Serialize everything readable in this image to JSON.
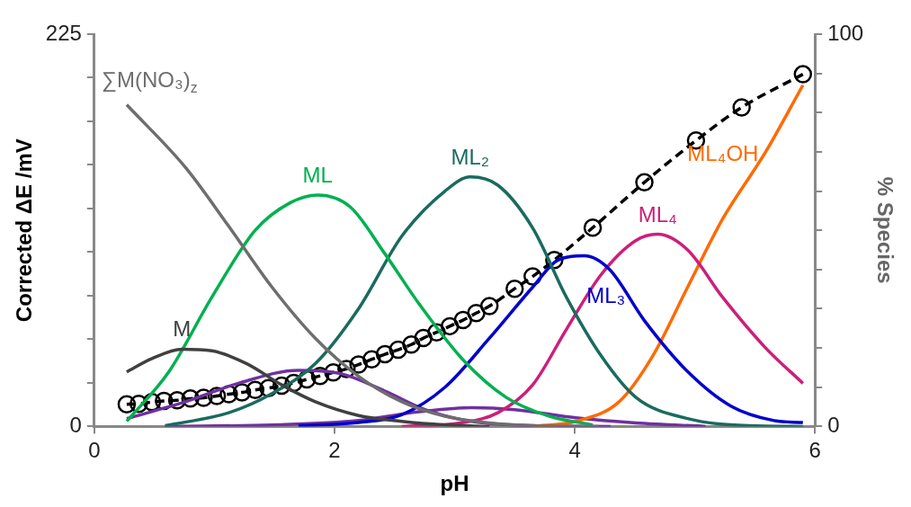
{
  "chart_data": {
    "type": "line",
    "xlabel": "pH",
    "ylabel": "Corrected ΔE /mV",
    "y2label": "% Species",
    "xlim": [
      0,
      6
    ],
    "xticks": [
      0,
      2,
      4,
      6
    ],
    "ylim": [
      0,
      225
    ],
    "yticks": [
      0,
      {
        "value": 25,
        "label": null
      },
      {
        "value": 50,
        "label": null
      },
      {
        "value": 75,
        "label": null
      },
      {
        "value": 100,
        "label": null
      },
      {
        "value": 125,
        "label": null
      },
      {
        "value": 150,
        "label": null
      },
      {
        "value": 175,
        "label": null
      },
      {
        "value": 200,
        "label": null
      },
      225
    ],
    "y2lim": [
      0,
      100
    ],
    "y2ticks": [
      0,
      {
        "value": 10,
        "label": null
      },
      {
        "value": 20,
        "label": null
      },
      {
        "value": 30,
        "label": null
      },
      {
        "value": 40,
        "label": null
      },
      {
        "value": 50,
        "label": null
      },
      {
        "value": 60,
        "label": null
      },
      {
        "value": 70,
        "label": null
      },
      {
        "value": 80,
        "label": null
      },
      {
        "value": 90,
        "label": null
      },
      100
    ],
    "grid": false,
    "legend": false,
    "series": [
      {
        "name": "∑M(NO₃)$_{z}$",
        "color": "#6e6e6e",
        "axis": "y2",
        "x": [
          0.27,
          0.76,
          1.12,
          1.48,
          1.84,
          2.2,
          2.56,
          2.92,
          3.29,
          3.65,
          4.2
        ],
        "values": [
          82,
          66,
          51,
          35.5,
          22.5,
          12.8,
          6.3,
          2.6,
          0.9,
          0.2,
          0
        ]
      },
      {
        "name": "M",
        "color": "#404040",
        "axis": "y2",
        "x": [
          0.27,
          0.48,
          0.73,
          0.98,
          1.27,
          1.56,
          1.84,
          2.2,
          2.56,
          2.92,
          3.29
        ],
        "values": [
          13.9,
          17.3,
          19.7,
          19.3,
          16,
          10.6,
          6.3,
          2.8,
          1.3,
          0.4,
          0
        ]
      },
      {
        "name": "ML",
        "color": "#00b050",
        "axis": "y2",
        "x": [
          0.27,
          0.62,
          0.98,
          1.34,
          1.63,
          1.86,
          2.13,
          2.42,
          2.71,
          3.07,
          3.43,
          3.79,
          4.15
        ],
        "values": [
          1.3,
          13.9,
          33,
          50,
          57,
          59,
          56,
          44,
          31,
          17,
          7.4,
          2.6,
          0.4
        ]
      },
      {
        "name": "ML₂",
        "color": "#1a6b5e",
        "axis": "y2",
        "x": [
          0.59,
          1.12,
          1.48,
          1.84,
          2.2,
          2.56,
          2.92,
          3.13,
          3.36,
          3.65,
          3.93,
          4.22,
          4.51,
          4.94,
          5.45,
          5.9
        ],
        "values": [
          0.2,
          3.5,
          8.4,
          16,
          30,
          48.5,
          60,
          63.6,
          61.5,
          50.6,
          33,
          18,
          7.4,
          2,
          0.2,
          0
        ]
      },
      {
        "name": "ML₃",
        "color": "#0000cc",
        "axis": "y2",
        "x": [
          1.7,
          2.2,
          2.56,
          2.92,
          3.29,
          3.65,
          3.86,
          4.08,
          4.29,
          4.58,
          4.94,
          5.3,
          5.66,
          5.9
        ],
        "values": [
          0.2,
          1,
          3,
          10,
          22.5,
          35.5,
          42.4,
          43.5,
          40,
          27,
          14,
          5.2,
          1.5,
          1
        ]
      },
      {
        "name": "ML₄",
        "color": "#cc1f7a",
        "axis": "y2",
        "x": [
          2.56,
          3.07,
          3.36,
          3.65,
          3.93,
          4.22,
          4.51,
          4.69,
          4.94,
          5.23,
          5.59,
          5.9
        ],
        "values": [
          0,
          1,
          3.5,
          10.6,
          24.7,
          38.7,
          47.4,
          49,
          45,
          33,
          20,
          11
        ]
      },
      {
        "name": "ML₄OH",
        "color": "#ff6a00",
        "axis": "y2",
        "x": [
          3.65,
          4.01,
          4.37,
          4.65,
          4.94,
          5.23,
          5.59,
          5.9
        ],
        "values": [
          0,
          1.3,
          6.3,
          18,
          35.5,
          52.8,
          70,
          87
        ]
      },
      {
        "color": "#7030a0",
        "axis": "y2",
        "x": [
          0.27,
          0.76,
          1.2,
          1.7,
          2.06,
          2.42,
          2.78,
          3.14,
          3.65,
          4.3
        ],
        "values": [
          2,
          6.3,
          11,
          14.3,
          13.4,
          9,
          4,
          1.3,
          0.2,
          0
        ]
      },
      {
        "color": "#7030a0",
        "axis": "y2",
        "x": [
          0.59,
          1.48,
          2.2,
          2.64,
          3.14,
          3.5,
          4.01,
          4.51,
          5.09
        ],
        "values": [
          0,
          0.4,
          1.5,
          3.5,
          4.8,
          4.3,
          2.2,
          0.9,
          0
        ]
      },
      {
        "color": "#000000",
        "axis": "y",
        "marker": "circle",
        "line_style": "dashed",
        "x": [
          0.27,
          0.37,
          0.48,
          0.58,
          0.69,
          0.8,
          0.91,
          1.02,
          1.12,
          1.23,
          1.34,
          1.45,
          1.56,
          1.66,
          1.77,
          1.88,
          1.99,
          2.1,
          2.2,
          2.31,
          2.42,
          2.53,
          2.64,
          2.74,
          2.85,
          2.96,
          3.07,
          3.18,
          3.29,
          3.5,
          3.65,
          3.83,
          4.15,
          4.58,
          5.01,
          5.39,
          5.9
        ],
        "values": [
          12.7,
          13,
          14,
          14.6,
          15,
          16,
          16.5,
          17.5,
          18.5,
          19.5,
          21,
          22,
          23.4,
          25,
          27,
          29,
          31,
          33,
          35.5,
          38.5,
          41.4,
          44,
          47,
          50.7,
          54,
          57.5,
          61,
          65,
          69,
          79,
          86,
          95.5,
          114,
          140,
          164,
          183,
          202
        ]
      }
    ]
  }
}
